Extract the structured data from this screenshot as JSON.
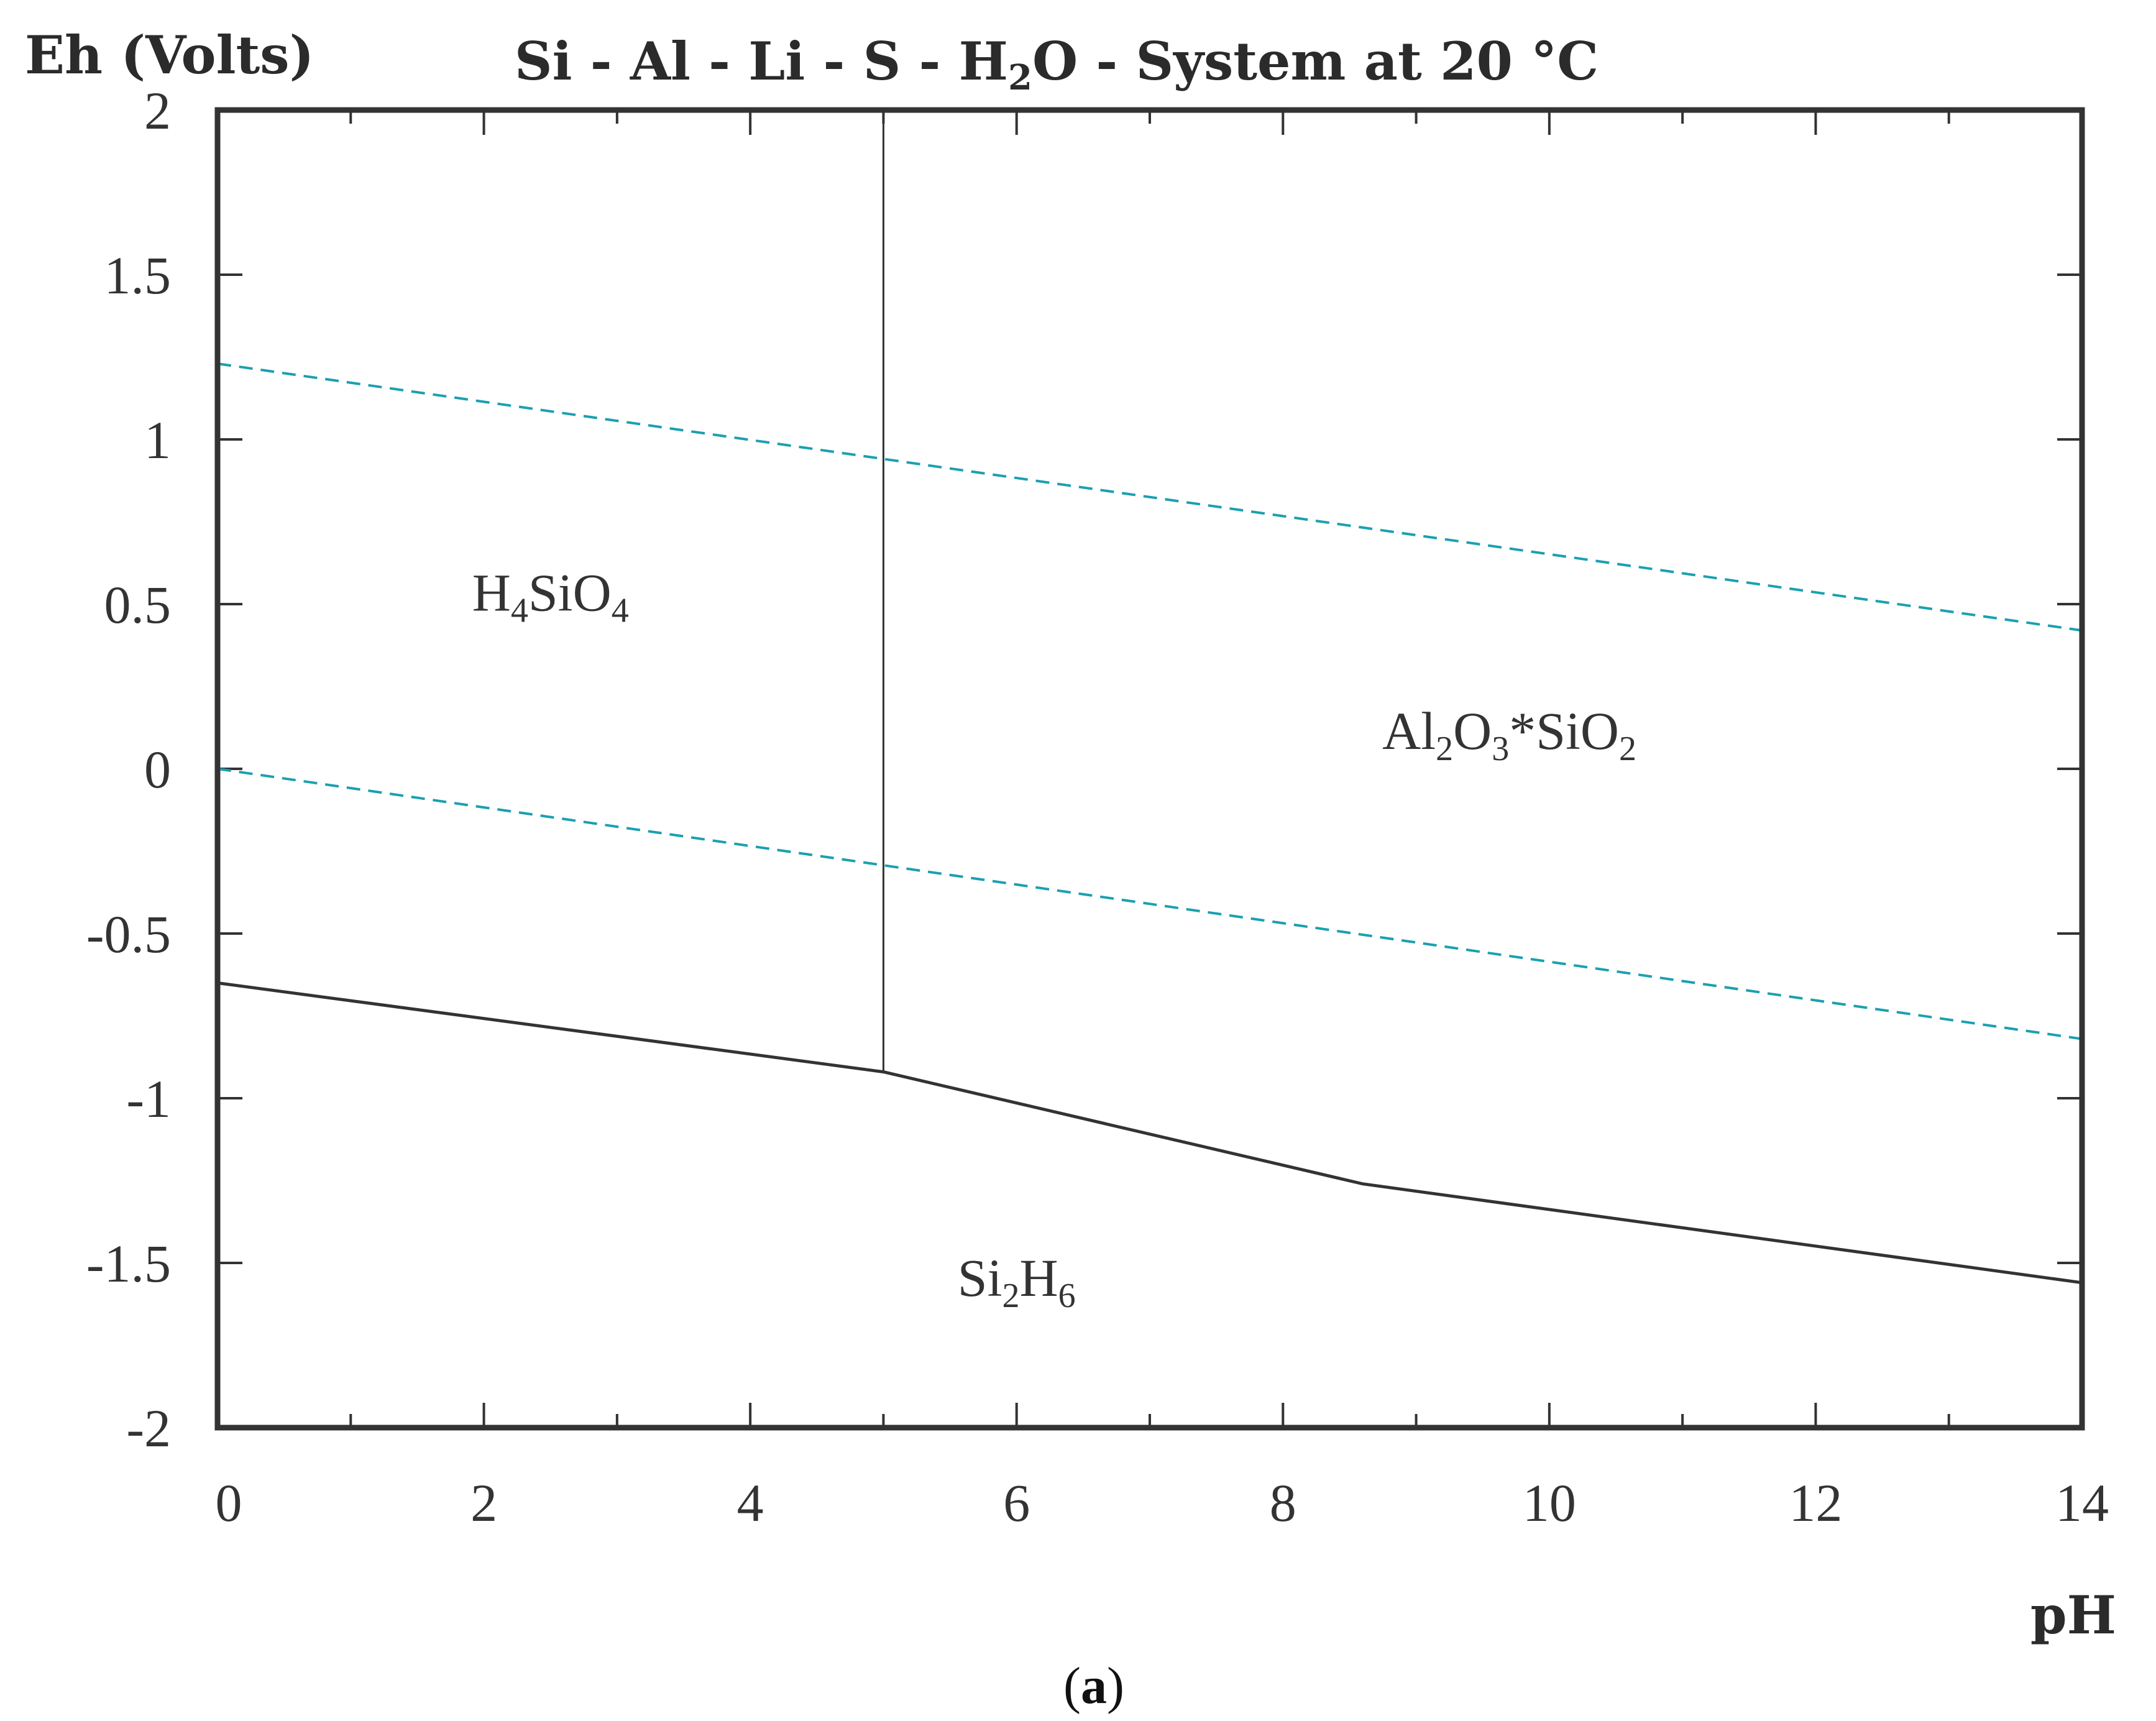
{
  "chart_data": {
    "type": "line",
    "title": {
      "parts": [
        "Si - Al - Li - S - H",
        "2",
        "O - System at 20 °C"
      ]
    },
    "ylabel": "Eh (Volts)",
    "xlabel": "pH",
    "xlim": [
      0,
      14
    ],
    "ylim": [
      -2,
      2
    ],
    "x_ticks": [
      0,
      2,
      4,
      6,
      8,
      10,
      12,
      14
    ],
    "x_tick_labels": [
      "0",
      "2",
      "4",
      "6",
      "8",
      "10",
      "12",
      "14"
    ],
    "x_minor_ticks": [
      1,
      3,
      5,
      7,
      9,
      11,
      13
    ],
    "y_ticks": [
      -2,
      -1.5,
      -1,
      -0.5,
      0,
      0.5,
      1,
      1.5,
      2
    ],
    "y_tick_labels": [
      "-2",
      "-1.5",
      "-1",
      "-0.5",
      "0",
      "0.5",
      "1",
      "1.5",
      "2"
    ],
    "grid": false,
    "boundaries": [
      {
        "style": "solid",
        "color": "#333333",
        "points": [
          [
            5,
            2.0
          ],
          [
            5,
            -0.92
          ]
        ]
      },
      {
        "style": "solid",
        "color": "#333333",
        "points": [
          [
            0,
            -0.65
          ],
          [
            5,
            -0.92
          ],
          [
            8.6,
            -1.26
          ],
          [
            14,
            -1.56
          ]
        ]
      }
    ],
    "water_lines": [
      {
        "style": "dashed",
        "color": "#1aa0b0",
        "points": [
          [
            0,
            1.23
          ],
          [
            14,
            0.42
          ]
        ]
      },
      {
        "style": "dashed",
        "color": "#1aa0b0",
        "points": [
          [
            0,
            0.0
          ],
          [
            14,
            -0.82
          ]
        ]
      }
    ],
    "regions": [
      {
        "parts": [
          "H",
          "4",
          "SiO",
          "4"
        ],
        "x": 2.5,
        "y": 0.48
      },
      {
        "parts": [
          "Al",
          "2",
          "O",
          "3",
          "*SiO",
          "2"
        ],
        "x": 9.7,
        "y": 0.06
      },
      {
        "parts": [
          "Si",
          "2",
          "H",
          "6"
        ],
        "x": 6.0,
        "y": -1.6
      }
    ]
  },
  "caption": {
    "open": "(",
    "letter": "a",
    "close": ")"
  },
  "colors": {
    "axis": "#333333",
    "boundary": "#333333",
    "water": "#1aa0b0"
  }
}
